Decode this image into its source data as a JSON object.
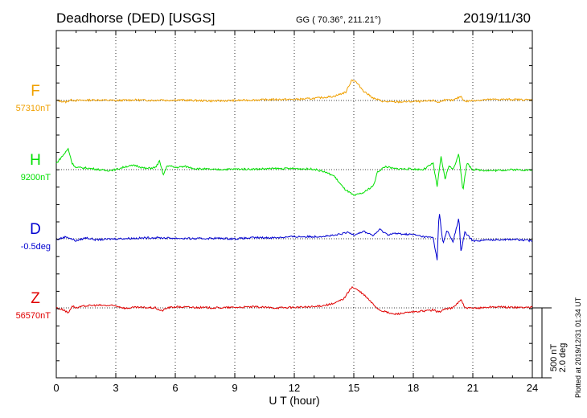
{
  "header": {
    "station": "Deadhorse (DED)  [USGS]",
    "coords": "GG ( 70.36°, 211.21°)",
    "date": "2019/11/30"
  },
  "side_note": "Plotted at 2019/12/31 01:34 UT",
  "scale_bar": {
    "field": "500 nT",
    "angle": "2.0 deg"
  },
  "chart_data": {
    "type": "line",
    "xlabel": "U T (hour)",
    "xlim": [
      0,
      24
    ],
    "xticks": [
      0,
      3,
      6,
      9,
      12,
      15,
      18,
      21,
      24
    ],
    "xtick_labels": [
      "0",
      "3",
      "6",
      "9",
      "12",
      "15",
      "18",
      "21",
      "24"
    ],
    "grid": "dotted vertical lines every 3 hours, dotted baseline per series",
    "series": [
      {
        "name": "F",
        "baseline_label": "57310nT",
        "color": "#f0a000",
        "points": [
          [
            0,
            0
          ],
          [
            0.5,
            -15
          ],
          [
            0.7,
            5
          ],
          [
            1,
            0
          ],
          [
            2,
            5
          ],
          [
            3,
            0
          ],
          [
            4,
            5
          ],
          [
            5,
            0
          ],
          [
            5.3,
            10
          ],
          [
            5.5,
            0
          ],
          [
            6,
            5
          ],
          [
            7,
            0
          ],
          [
            8,
            -5
          ],
          [
            9,
            0
          ],
          [
            10,
            5
          ],
          [
            11,
            10
          ],
          [
            12,
            10
          ],
          [
            13,
            20
          ],
          [
            14,
            40
          ],
          [
            14.6,
            80
          ],
          [
            14.9,
            200
          ],
          [
            15.1,
            180
          ],
          [
            15.5,
            90
          ],
          [
            16,
            20
          ],
          [
            16.5,
            -10
          ],
          [
            17,
            -15
          ],
          [
            18,
            -10
          ],
          [
            18.5,
            -10
          ],
          [
            19,
            0
          ],
          [
            19.3,
            -20
          ],
          [
            19.5,
            5
          ],
          [
            20,
            0
          ],
          [
            20.4,
            40
          ],
          [
            20.6,
            -10
          ],
          [
            21,
            0
          ],
          [
            22,
            10
          ],
          [
            23,
            10
          ],
          [
            24,
            5
          ]
        ]
      },
      {
        "name": "H",
        "baseline_label": "9200nT",
        "color": "#00e000",
        "points": [
          [
            0,
            60
          ],
          [
            0.4,
            150
          ],
          [
            0.6,
            200
          ],
          [
            0.8,
            60
          ],
          [
            1,
            20
          ],
          [
            1.5,
            15
          ],
          [
            2,
            5
          ],
          [
            2.5,
            -10
          ],
          [
            3,
            0
          ],
          [
            3.5,
            30
          ],
          [
            4,
            40
          ],
          [
            4.5,
            10
          ],
          [
            5,
            20
          ],
          [
            5.2,
            80
          ],
          [
            5.4,
            -50
          ],
          [
            5.6,
            40
          ],
          [
            6,
            20
          ],
          [
            6.5,
            30
          ],
          [
            7,
            10
          ],
          [
            8,
            0
          ],
          [
            9,
            5
          ],
          [
            10,
            5
          ],
          [
            11,
            10
          ],
          [
            12,
            10
          ],
          [
            13,
            5
          ],
          [
            13.5,
            -20
          ],
          [
            14,
            -60
          ],
          [
            14.5,
            -180
          ],
          [
            15,
            -250
          ],
          [
            15.5,
            -220
          ],
          [
            16,
            -150
          ],
          [
            16.2,
            -20
          ],
          [
            16.6,
            30
          ],
          [
            17,
            10
          ],
          [
            18,
            5
          ],
          [
            18.5,
            0
          ],
          [
            19,
            60
          ],
          [
            19.2,
            -160
          ],
          [
            19.4,
            120
          ],
          [
            19.6,
            -90
          ],
          [
            19.8,
            40
          ],
          [
            20,
            0
          ],
          [
            20.3,
            150
          ],
          [
            20.5,
            -200
          ],
          [
            20.7,
            60
          ],
          [
            21,
            0
          ],
          [
            22,
            -10
          ],
          [
            23,
            0
          ],
          [
            24,
            -5
          ]
        ]
      },
      {
        "name": "D",
        "baseline_label": "-0.5deg",
        "color": "#0000d0",
        "points": [
          [
            0,
            -10
          ],
          [
            0.5,
            20
          ],
          [
            1,
            -20
          ],
          [
            1.5,
            10
          ],
          [
            2,
            -10
          ],
          [
            3,
            0
          ],
          [
            4,
            5
          ],
          [
            5,
            10
          ],
          [
            6,
            5
          ],
          [
            7,
            0
          ],
          [
            8,
            5
          ],
          [
            9,
            0
          ],
          [
            10,
            10
          ],
          [
            11,
            10
          ],
          [
            12,
            20
          ],
          [
            13,
            20
          ],
          [
            14,
            30
          ],
          [
            14.7,
            60
          ],
          [
            15,
            40
          ],
          [
            15.5,
            70
          ],
          [
            16,
            30
          ],
          [
            16.3,
            90
          ],
          [
            16.7,
            40
          ],
          [
            17,
            50
          ],
          [
            18,
            40
          ],
          [
            18.5,
            20
          ],
          [
            19,
            10
          ],
          [
            19.2,
            -200
          ],
          [
            19.3,
            270
          ],
          [
            19.5,
            -50
          ],
          [
            19.7,
            80
          ],
          [
            20,
            -30
          ],
          [
            20.3,
            200
          ],
          [
            20.4,
            -120
          ],
          [
            20.6,
            60
          ],
          [
            21,
            -20
          ],
          [
            22,
            -10
          ],
          [
            23,
            -5
          ],
          [
            24,
            -20
          ]
        ]
      },
      {
        "name": "Z",
        "baseline_label": "56570nT",
        "color": "#e00000",
        "points": [
          [
            0,
            0
          ],
          [
            0.4,
            -20
          ],
          [
            0.6,
            -50
          ],
          [
            0.8,
            20
          ],
          [
            1,
            0
          ],
          [
            1.5,
            20
          ],
          [
            2,
            25
          ],
          [
            3,
            20
          ],
          [
            3.5,
            -5
          ],
          [
            4,
            5
          ],
          [
            5,
            0
          ],
          [
            5.3,
            -30
          ],
          [
            5.6,
            0
          ],
          [
            6,
            10
          ],
          [
            7,
            5
          ],
          [
            8,
            0
          ],
          [
            9,
            5
          ],
          [
            10,
            10
          ],
          [
            11,
            0
          ],
          [
            12,
            5
          ],
          [
            13,
            10
          ],
          [
            14,
            40
          ],
          [
            14.5,
            90
          ],
          [
            14.9,
            200
          ],
          [
            15.2,
            170
          ],
          [
            15.6,
            110
          ],
          [
            16,
            30
          ],
          [
            16.3,
            -20
          ],
          [
            16.8,
            -50
          ],
          [
            17,
            -60
          ],
          [
            18,
            -40
          ],
          [
            18.5,
            -30
          ],
          [
            19,
            -20
          ],
          [
            19.3,
            -40
          ],
          [
            19.6,
            -10
          ],
          [
            20,
            0
          ],
          [
            20.4,
            80
          ],
          [
            20.6,
            0
          ],
          [
            21,
            -5
          ],
          [
            22,
            10
          ],
          [
            23,
            5
          ],
          [
            24,
            5
          ]
        ]
      }
    ]
  }
}
